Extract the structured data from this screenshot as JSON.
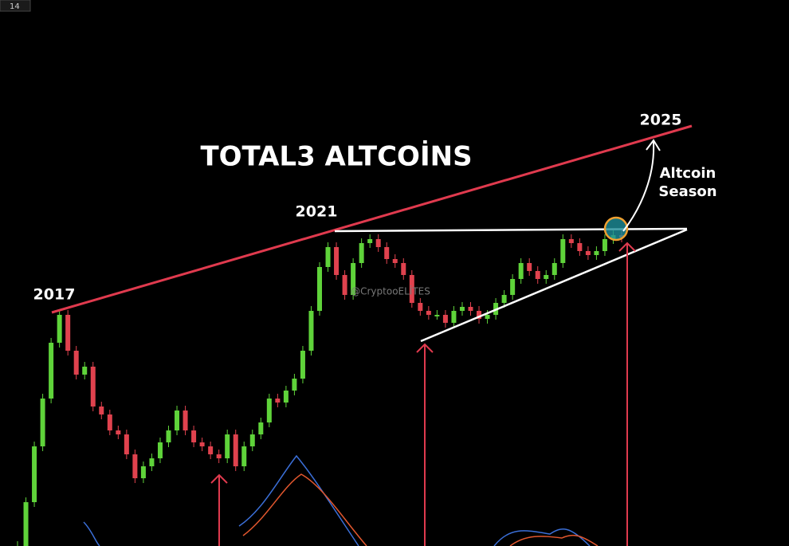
{
  "chart_data": {
    "type": "candlestick",
    "title": "TOTAL3 ALTCOİNS",
    "interval_badge": "14",
    "watermark": "@CryptooELİTES",
    "annotations": {
      "year_2017": "2017",
      "year_2021": "2021",
      "year_2025": "2025",
      "season": [
        "Altcoin",
        "Season"
      ]
    },
    "up_color": "#5fd33a",
    "down_color": "#e0424e",
    "ylim": [
      0,
      685
    ],
    "values": [
      0,
      55,
      125,
      185,
      255,
      290,
      245,
      215,
      225,
      175,
      165,
      145,
      140,
      115,
      85,
      100,
      110,
      130,
      145,
      170,
      145,
      130,
      125,
      115,
      110,
      140,
      100,
      125,
      140,
      155,
      185,
      180,
      195,
      210,
      245,
      295,
      350,
      375,
      340,
      315,
      355,
      380,
      385,
      375,
      360,
      355,
      340,
      305,
      295,
      290,
      290,
      280,
      295,
      300,
      295,
      285,
      290,
      305,
      315,
      335,
      355,
      345,
      335,
      340,
      355,
      385,
      380,
      370,
      365,
      370,
      385,
      390,
      387
    ]
  }
}
